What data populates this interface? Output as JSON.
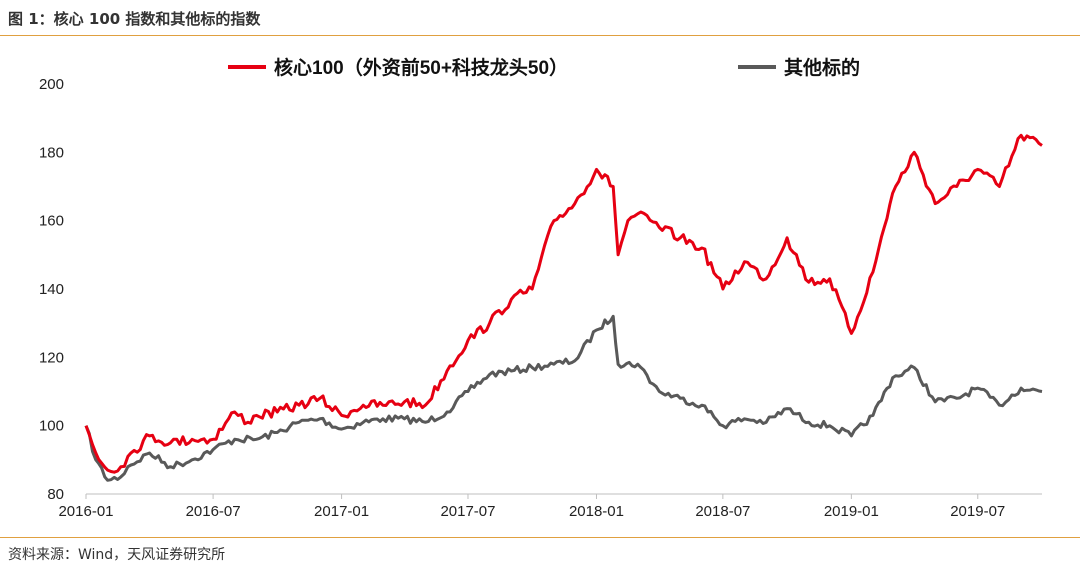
{
  "figure": {
    "title": "图 1：核心 100 指数和其他标的指数",
    "source": "资料来源：Wind，天风证券研究所"
  },
  "chart_data": {
    "type": "line",
    "ylim": [
      80,
      200
    ],
    "yticks": [
      80,
      100,
      120,
      140,
      160,
      180,
      200
    ],
    "xticks": [
      "2016-01",
      "2016-07",
      "2017-01",
      "2017-07",
      "2018-01",
      "2018-07",
      "2019-01",
      "2019-07"
    ],
    "x_range": [
      "2016-01",
      "2019-10"
    ],
    "grid": false,
    "legend_position": "top",
    "series": [
      {
        "name": "核心100（外资前50+科技龙头50）",
        "color": "#e60012",
        "points": [
          [
            "2016-01",
            100
          ],
          [
            "2016-01-15",
            92
          ],
          [
            "2016-02",
            87
          ],
          [
            "2016-02-20",
            88
          ],
          [
            "2016-03",
            91
          ],
          [
            "2016-04",
            97
          ],
          [
            "2016-05",
            95
          ],
          [
            "2016-06",
            96
          ],
          [
            "2016-07",
            96
          ],
          [
            "2016-08",
            104
          ],
          [
            "2016-08-20",
            101
          ],
          [
            "2016-09",
            103
          ],
          [
            "2016-10",
            104
          ],
          [
            "2016-11",
            106
          ],
          [
            "2016-12",
            108
          ],
          [
            "2017-01",
            103
          ],
          [
            "2017-02",
            106
          ],
          [
            "2017-03",
            106
          ],
          [
            "2017-04",
            107
          ],
          [
            "2017-05",
            106
          ],
          [
            "2017-06",
            116
          ],
          [
            "2017-07",
            125
          ],
          [
            "2017-08",
            130
          ],
          [
            "2017-09",
            137
          ],
          [
            "2017-10",
            140
          ],
          [
            "2017-11",
            160
          ],
          [
            "2017-12",
            165
          ],
          [
            "2018-01",
            175
          ],
          [
            "2018-01-25",
            170
          ],
          [
            "2018-02",
            150
          ],
          [
            "2018-02-15",
            160
          ],
          [
            "2018-03",
            162
          ],
          [
            "2018-04",
            158
          ],
          [
            "2018-05",
            155
          ],
          [
            "2018-06",
            152
          ],
          [
            "2018-07",
            140
          ],
          [
            "2018-08",
            148
          ],
          [
            "2018-09",
            143
          ],
          [
            "2018-10",
            155
          ],
          [
            "2018-11",
            142
          ],
          [
            "2018-12",
            143
          ],
          [
            "2019-01",
            127
          ],
          [
            "2019-02",
            145
          ],
          [
            "2019-03",
            168
          ],
          [
            "2019-04",
            180
          ],
          [
            "2019-05",
            165
          ],
          [
            "2019-06",
            170
          ],
          [
            "2019-07",
            175
          ],
          [
            "2019-08",
            170
          ],
          [
            "2019-09",
            185
          ],
          [
            "2019-10",
            182
          ]
        ]
      },
      {
        "name": "其他标的",
        "color": "#595959",
        "points": [
          [
            "2016-01",
            100
          ],
          [
            "2016-01-15",
            90
          ],
          [
            "2016-02",
            84
          ],
          [
            "2016-02-20",
            85
          ],
          [
            "2016-03",
            88
          ],
          [
            "2016-04",
            92
          ],
          [
            "2016-05",
            88
          ],
          [
            "2016-06",
            90
          ],
          [
            "2016-07",
            93
          ],
          [
            "2016-08",
            96
          ],
          [
            "2016-09",
            96
          ],
          [
            "2016-10",
            98
          ],
          [
            "2016-11",
            101
          ],
          [
            "2016-12",
            102
          ],
          [
            "2017-01",
            99
          ],
          [
            "2017-02",
            101
          ],
          [
            "2017-03",
            102
          ],
          [
            "2017-04",
            102
          ],
          [
            "2017-05",
            101
          ],
          [
            "2017-06",
            104
          ],
          [
            "2017-07",
            110
          ],
          [
            "2017-08",
            115
          ],
          [
            "2017-09",
            116
          ],
          [
            "2017-10",
            117
          ],
          [
            "2017-11",
            118
          ],
          [
            "2017-12",
            119
          ],
          [
            "2018-01",
            128
          ],
          [
            "2018-01-25",
            132
          ],
          [
            "2018-02",
            118
          ],
          [
            "2018-03",
            118
          ],
          [
            "2018-04",
            110
          ],
          [
            "2018-05",
            108
          ],
          [
            "2018-06",
            106
          ],
          [
            "2018-07",
            100
          ],
          [
            "2018-08",
            102
          ],
          [
            "2018-09",
            101
          ],
          [
            "2018-10",
            105
          ],
          [
            "2018-11",
            101
          ],
          [
            "2018-12",
            100
          ],
          [
            "2019-01",
            97
          ],
          [
            "2019-02",
            103
          ],
          [
            "2019-03",
            114
          ],
          [
            "2019-04",
            117
          ],
          [
            "2019-05",
            107
          ],
          [
            "2019-06",
            108
          ],
          [
            "2019-07",
            111
          ],
          [
            "2019-08",
            106
          ],
          [
            "2019-09",
            111
          ],
          [
            "2019-10",
            110
          ]
        ]
      }
    ]
  }
}
